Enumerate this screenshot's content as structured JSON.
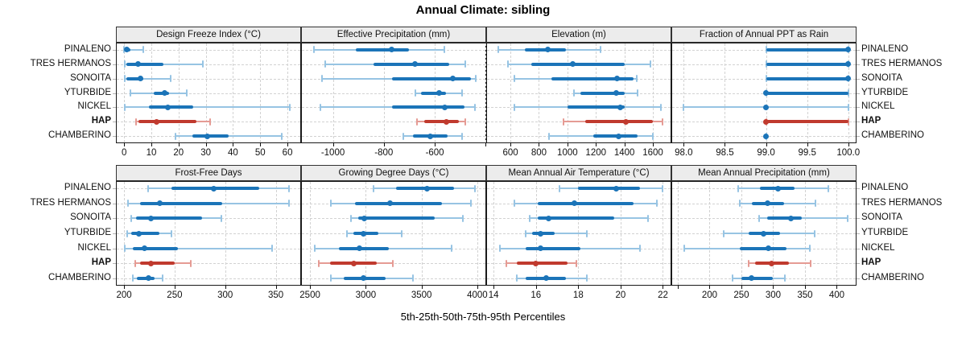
{
  "title": "Annual Climate: sibling",
  "xlabel": "5th-25th-50th-75th-95th Percentiles",
  "colors": {
    "series": "#1b74b8",
    "series_light": "#97c4e3",
    "highlight": "#c03a2e",
    "highlight_light": "#e59b94",
    "strip_bg": "#ececec",
    "grid": "#d2d2d2"
  },
  "chart_data": {
    "type": "trellis-percentile-intervals",
    "title": "Annual Climate: sibling",
    "xlabel": "5th-25th-50th-75th-95th Percentiles",
    "percentiles": [
      5,
      25,
      50,
      75,
      95
    ],
    "legend_position": "none",
    "grid": "dashed",
    "sites": [
      "PINALENO",
      "TRES HERMANOS",
      "SONOITA",
      "YTURBIDE",
      "NICKEL",
      "HAP",
      "CHAMBERINO"
    ],
    "highlighted_site": "HAP",
    "panels": [
      {
        "title": "Design Freeze Index (°C)",
        "grid_row": 0,
        "grid_col": 0,
        "xlim": [
          -3,
          65
        ],
        "ticks": [
          0,
          10,
          20,
          30,
          40,
          50,
          60
        ],
        "tick_labels": [
          "0",
          "10",
          "20",
          "30",
          "40",
          "50",
          "60"
        ],
        "values": [
          [
            0,
            0.3,
            1,
            2.2,
            7
          ],
          [
            0.2,
            0.8,
            5,
            14.5,
            29
          ],
          [
            0.2,
            0.8,
            6,
            7,
            17
          ],
          [
            2.3,
            11,
            15,
            16.5,
            23
          ],
          [
            0.2,
            9,
            16,
            25.5,
            61
          ],
          [
            4.3,
            5.2,
            11.8,
            26.5,
            31.5
          ],
          [
            19,
            25,
            30.5,
            38.5,
            58
          ]
        ]
      },
      {
        "title": "Effective Precipitation (mm)",
        "grid_row": 0,
        "grid_col": 1,
        "xlim": [
          -1125,
          -398
        ],
        "ticks": [
          -1000,
          -800,
          -600,
          -400
        ],
        "tick_labels": [
          "-1000",
          "-800",
          "-600",
          ""
        ],
        "values": [
          [
            -1073,
            -909,
            -769,
            -701,
            -562
          ],
          [
            -1031,
            -841,
            -677,
            -544,
            -479
          ],
          [
            -1042,
            -769,
            -529,
            -457,
            -438
          ],
          [
            -677,
            -654,
            -583,
            -555,
            -493
          ],
          [
            -1050,
            -769,
            -562,
            -482,
            -441
          ],
          [
            -670,
            -640,
            -555,
            -505,
            -480
          ],
          [
            -722,
            -686,
            -617,
            -551,
            -493
          ]
        ]
      },
      {
        "title": "Elevation (m)",
        "grid_row": 0,
        "grid_col": 2,
        "xlim": [
          430,
          1730
        ],
        "ticks": [
          600,
          800,
          1000,
          1200,
          1400,
          1600
        ],
        "tick_labels": [
          "600",
          "800",
          "1000",
          "1200",
          "1400",
          "1600"
        ],
        "values": [
          [
            512,
            700,
            863,
            990,
            1230
          ],
          [
            580,
            745,
            1040,
            1400,
            1585
          ],
          [
            625,
            890,
            1347,
            1466,
            1485
          ],
          [
            1045,
            1090,
            1344,
            1400,
            1490
          ],
          [
            630,
            1000,
            1370,
            1400,
            1655
          ],
          [
            975,
            1125,
            1410,
            1600,
            1670
          ],
          [
            870,
            1183,
            1357,
            1494,
            1598
          ]
        ]
      },
      {
        "title": "Fraction of Annual PPT as Rain",
        "grid_row": 0,
        "grid_col": 3,
        "xlim": [
          97.85,
          100.1
        ],
        "ticks": [
          98.0,
          98.5,
          99.0,
          99.5,
          100.0
        ],
        "tick_labels": [
          "98.0",
          "98.5",
          "99.0",
          "99.5",
          "100.0"
        ],
        "values": [
          [
            99,
            99,
            100,
            100,
            100
          ],
          [
            99,
            99,
            100,
            100,
            100
          ],
          [
            99,
            99,
            100,
            100,
            100
          ],
          [
            99,
            99,
            99,
            100,
            100
          ],
          [
            98,
            99,
            99,
            99,
            100
          ],
          [
            99,
            99,
            99,
            100,
            100
          ],
          [
            99,
            99,
            99,
            99,
            99
          ]
        ]
      },
      {
        "title": "Frost-Free Days",
        "grid_row": 1,
        "grid_col": 0,
        "xlim": [
          192,
          375
        ],
        "ticks": [
          200,
          250,
          300,
          350
        ],
        "tick_labels": [
          "200",
          "250",
          "300",
          "350"
        ],
        "values": [
          [
            224,
            247,
            289,
            334,
            363
          ],
          [
            204,
            216,
            235,
            297,
            363
          ],
          [
            207,
            212,
            227,
            277,
            296
          ],
          [
            203,
            207,
            215,
            235,
            247
          ],
          [
            201,
            209,
            220,
            253,
            346
          ],
          [
            211,
            216,
            227,
            250,
            266
          ],
          [
            209,
            213,
            224,
            230,
            238
          ]
        ]
      },
      {
        "title": "Growing Degree Days (°C)",
        "grid_row": 1,
        "grid_col": 1,
        "xlim": [
          2420,
          4080
        ],
        "ticks": [
          2500,
          3000,
          3500,
          4000
        ],
        "tick_labels": [
          "2500",
          "3000",
          "3500",
          "4000"
        ],
        "values": [
          [
            3070,
            3270,
            3550,
            3790,
            3980
          ],
          [
            2690,
            2900,
            3220,
            3680,
            3940
          ],
          [
            2870,
            2930,
            2990,
            3620,
            3870
          ],
          [
            2830,
            2890,
            2980,
            3110,
            3320
          ],
          [
            2540,
            2760,
            2940,
            3210,
            3770
          ],
          [
            2580,
            2680,
            2890,
            3100,
            3240
          ],
          [
            2690,
            2800,
            2980,
            3180,
            3420
          ]
        ]
      },
      {
        "title": "Mean Annual Air Temperature (°C)",
        "grid_row": 1,
        "grid_col": 2,
        "xlim": [
          13.65,
          22.4
        ],
        "ticks": [
          14,
          16,
          18,
          20,
          22
        ],
        "tick_labels": [
          "14",
          "16",
          "18",
          "20",
          "22"
        ],
        "values": [
          [
            17.1,
            18.0,
            19.8,
            20.9,
            22.0
          ],
          [
            15.0,
            16.1,
            17.8,
            20.6,
            21.7
          ],
          [
            15.7,
            16.1,
            16.6,
            19.7,
            21.3
          ],
          [
            15.5,
            15.8,
            16.2,
            16.9,
            18.4
          ],
          [
            14.3,
            15.5,
            16.2,
            18.1,
            20.9
          ],
          [
            14.6,
            15.1,
            16.0,
            17.5,
            17.9
          ],
          [
            15.1,
            15.5,
            16.5,
            17.4,
            18.4
          ]
        ]
      },
      {
        "title": "Mean Annual Precipitation (mm)",
        "grid_row": 1,
        "grid_col": 3,
        "xlim": [
          140,
          431
        ],
        "ticks": [
          150,
          200,
          250,
          300,
          350,
          400
        ],
        "tick_labels": [
          "",
          "200",
          "250",
          "300",
          "350",
          "400"
        ],
        "values": [
          [
            245,
            279,
            308,
            333,
            387
          ],
          [
            247,
            266,
            291,
            317,
            367
          ],
          [
            278,
            290,
            328,
            345,
            417
          ],
          [
            222,
            262,
            285,
            311,
            365
          ],
          [
            160,
            248,
            292,
            321,
            357
          ],
          [
            262,
            271,
            298,
            325,
            359
          ],
          [
            236,
            250,
            266,
            300,
            319
          ]
        ]
      }
    ]
  }
}
